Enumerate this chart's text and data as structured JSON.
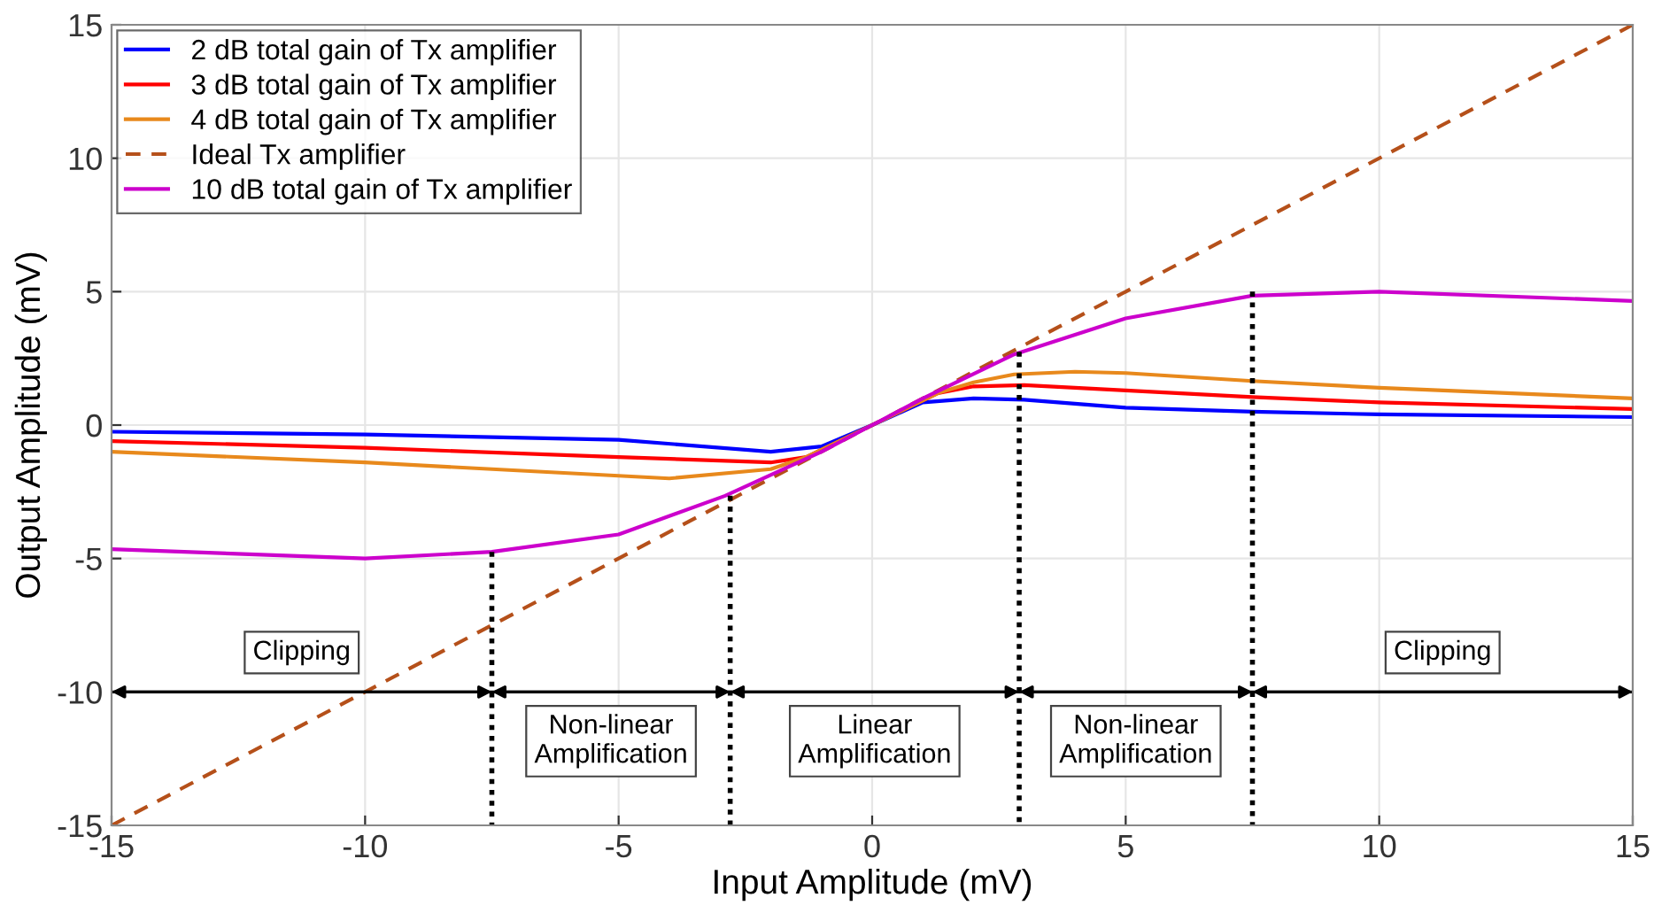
{
  "chart_data": {
    "type": "line",
    "xlabel": "Input Amplitude (mV)",
    "ylabel": "Output Amplitude (mV)",
    "xlim": [
      -15,
      15
    ],
    "ylim": [
      -15,
      15
    ],
    "xticks": [
      -15,
      -10,
      -5,
      0,
      5,
      10,
      15
    ],
    "yticks": [
      -15,
      -10,
      -5,
      0,
      5,
      10,
      15
    ],
    "grid": true,
    "legend": "top left",
    "series": [
      {
        "name": "2 dB total gain of Tx amplifier",
        "color": "#0000ff",
        "x": [
          -15,
          -10,
          -5,
          -2,
          -1,
          0,
          1,
          2,
          3,
          5,
          7.5,
          10,
          15
        ],
        "values": [
          -0.25,
          -0.35,
          -0.55,
          -1.0,
          -0.8,
          0,
          0.85,
          1.0,
          0.95,
          0.65,
          0.5,
          0.4,
          0.3
        ]
      },
      {
        "name": "3 dB total gain of Tx amplifier",
        "color": "#ff0000",
        "x": [
          -15,
          -10,
          -5,
          -2,
          -1.3,
          0,
          1.3,
          2,
          3,
          5,
          7.5,
          10,
          15
        ],
        "values": [
          -0.6,
          -0.85,
          -1.2,
          -1.4,
          -1.2,
          0,
          1.2,
          1.45,
          1.5,
          1.3,
          1.05,
          0.85,
          0.6
        ]
      },
      {
        "name": "4 dB total gain of Tx amplifier",
        "color": "#e8891c",
        "x": [
          -15,
          -10,
          -5,
          -4,
          -2,
          -1.3,
          0,
          1.3,
          2,
          2.8,
          4,
          5,
          7.5,
          10,
          15
        ],
        "values": [
          -1.0,
          -1.4,
          -1.9,
          -2.0,
          -1.65,
          -1.2,
          0,
          1.2,
          1.6,
          1.9,
          2.0,
          1.95,
          1.65,
          1.4,
          1.0
        ]
      },
      {
        "name": "Ideal Tx amplifier",
        "color": "#b5501a",
        "line_style": "dashed",
        "x": [
          -15,
          15
        ],
        "values": [
          -15,
          15
        ]
      },
      {
        "name": "10 dB total gain of Tx amplifier",
        "color": "#cc00cc",
        "x": [
          -15,
          -10,
          -7.5,
          -5,
          -2.9,
          -1,
          0,
          1,
          2.8,
          5,
          7.5,
          10,
          15
        ],
        "values": [
          -4.65,
          -5.0,
          -4.75,
          -4.1,
          -2.65,
          -1.0,
          0,
          1.0,
          2.65,
          4.0,
          4.85,
          5.0,
          4.65
        ]
      },
      {
        "color": "#000000",
        "line_style": "dotted",
        "x": [
          -7.5,
          -7.5
        ],
        "values": [
          -4.75,
          -15
        ]
      },
      {
        "color": "#000000",
        "line_style": "dotted",
        "x": [
          -2.8,
          -2.8
        ],
        "values": [
          -2.65,
          -15
        ]
      },
      {
        "color": "#000000",
        "line_style": "dotted",
        "x": [
          2.9,
          2.9
        ],
        "values": [
          2.75,
          -15
        ]
      },
      {
        "color": "#000000",
        "line_style": "dotted",
        "x": [
          7.5,
          7.5
        ],
        "values": [
          5.0,
          -15
        ]
      }
    ],
    "ref_lines": [
      {
        "axis": "y",
        "value": -10,
        "color": "#000000"
      }
    ],
    "annotations": [
      "Clipping",
      "Non-linear\nAmplification",
      "Linear\nAmplification",
      "Non-linear\nAmplification",
      "Clipping"
    ]
  }
}
